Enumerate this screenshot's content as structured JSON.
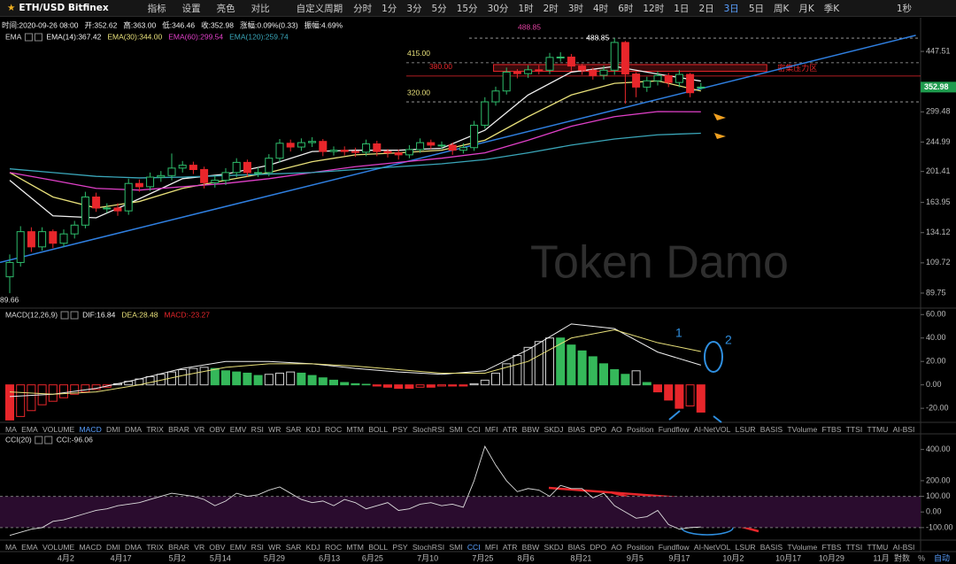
{
  "toolbar": {
    "symbol": "ETH/USD Bitfinex",
    "buttons": [
      "指标",
      "设置",
      "亮色",
      "对比"
    ],
    "custom": "自定义周期",
    "periods": [
      "分时",
      "1分",
      "3分",
      "5分",
      "15分",
      "30分",
      "1时",
      "2时",
      "3时",
      "4时",
      "6时",
      "12时",
      "1日",
      "2日",
      "3日",
      "5日",
      "周K",
      "月K",
      "季K"
    ],
    "active_period": "3日",
    "right": "1秒"
  },
  "info": [
    "时间:2020-09-26 08:00",
    "开:352.62",
    "高:363.00",
    "低:346.46",
    "收:352.98",
    "涨幅:0.09%(0.33)",
    "振幅:4.69%"
  ],
  "watermark": "Token Damo",
  "chart_data": [
    {
      "type": "candlestick",
      "indicator": "EMA",
      "log_scale": true,
      "ylim": [
        81.2,
        512.6
      ],
      "yticks": [
        447.51,
        299.48,
        244.99,
        201.41,
        163.95,
        134.12,
        109.72,
        89.75
      ],
      "last_price": 352.98,
      "up_color": "#2ebd6b",
      "down_color": "#e8262b",
      "categories": [
        null,
        null,
        null,
        null,
        null,
        null,
        null,
        null,
        null,
        null,
        null,
        null,
        null,
        null,
        null,
        null,
        null,
        null,
        null,
        null,
        null,
        null,
        null,
        null,
        null,
        null,
        null,
        null,
        null,
        null,
        null,
        null,
        null,
        null,
        null,
        null,
        null,
        null,
        null,
        null,
        null,
        null,
        null,
        null,
        null,
        null,
        null,
        null,
        null,
        null,
        null,
        null,
        null,
        null,
        null,
        null,
        null,
        null,
        null,
        null,
        null,
        null,
        null,
        null,
        null
      ],
      "ohlc": [
        [
          100,
          116,
          89.66,
          110
        ],
        [
          110,
          140,
          107,
          135
        ],
        [
          135,
          139,
          118,
          122
        ],
        [
          122,
          139,
          119,
          135
        ],
        [
          135,
          137,
          121,
          125
        ],
        [
          125,
          137,
          122,
          133
        ],
        [
          133,
          145,
          129,
          141
        ],
        [
          141,
          176,
          138,
          170
        ],
        [
          170,
          175,
          154,
          158
        ],
        [
          158,
          163,
          153,
          158
        ],
        [
          158,
          163,
          150,
          155
        ],
        [
          155,
          192,
          151,
          186
        ],
        [
          186,
          191,
          176,
          182
        ],
        [
          182,
          200,
          177,
          194
        ],
        [
          194,
          202,
          188,
          196
        ],
        [
          196,
          227,
          190,
          206
        ],
        [
          206,
          216,
          200,
          210
        ],
        [
          210,
          215,
          198,
          204
        ],
        [
          204,
          208,
          180,
          187
        ],
        [
          187,
          196,
          181,
          190
        ],
        [
          190,
          206,
          184,
          200
        ],
        [
          200,
          220,
          194,
          214
        ],
        [
          214,
          218,
          195,
          200
        ],
        [
          200,
          207,
          194,
          200
        ],
        [
          200,
          226,
          195,
          220
        ],
        [
          220,
          250,
          214,
          243
        ],
        [
          243,
          249,
          230,
          237
        ],
        [
          237,
          251,
          231,
          244
        ],
        [
          244,
          253,
          237,
          246
        ],
        [
          246,
          250,
          223,
          230
        ],
        [
          230,
          238,
          224,
          232
        ],
        [
          232,
          238,
          224,
          230
        ],
        [
          230,
          236,
          222,
          229
        ],
        [
          229,
          249,
          223,
          242
        ],
        [
          242,
          247,
          223,
          230
        ],
        [
          230,
          234,
          221,
          228
        ],
        [
          228,
          233,
          218,
          225
        ],
        [
          225,
          240,
          220,
          233
        ],
        [
          233,
          251,
          228,
          244
        ],
        [
          244,
          249,
          234,
          240
        ],
        [
          240,
          246,
          234,
          240
        ],
        [
          240,
          244,
          225,
          232
        ],
        [
          232,
          243,
          227,
          236
        ],
        [
          236,
          282,
          231,
          274
        ],
        [
          274,
          330,
          268,
          320
        ],
        [
          320,
          354,
          312,
          344
        ],
        [
          344,
          402,
          336,
          390
        ],
        [
          390,
          398,
          374,
          386
        ],
        [
          386,
          408,
          375,
          396
        ],
        [
          396,
          408,
          384,
          395
        ],
        [
          395,
          443,
          385,
          430
        ],
        [
          430,
          445,
          418,
          431
        ],
        [
          431,
          440,
          394,
          406
        ],
        [
          406,
          412,
          383,
          395
        ],
        [
          395,
          402,
          371,
          382
        ],
        [
          382,
          407,
          371,
          395
        ],
        [
          395,
          488.85,
          383,
          475
        ],
        [
          475,
          480,
          316,
          385
        ],
        [
          385,
          390,
          330,
          353
        ],
        [
          353,
          378,
          342,
          368
        ],
        [
          368,
          392,
          357,
          381
        ],
        [
          381,
          388,
          353,
          364
        ],
        [
          364,
          395,
          353,
          384
        ],
        [
          384,
          388,
          330,
          340
        ],
        [
          352.62,
          363,
          346.46,
          352.98
        ]
      ],
      "series": [
        {
          "name": "EMA(14):367.42",
          "color": "#f0f0f0",
          "x": [
            0,
            4,
            8,
            12,
            16,
            20,
            24,
            28,
            32,
            36,
            40,
            44,
            48,
            52,
            56,
            60,
            64
          ],
          "values": [
            190,
            150,
            148,
            168,
            192,
            198,
            210,
            230,
            232,
            232,
            235,
            265,
            335,
            390,
            405,
            385,
            367.42
          ]
        },
        {
          "name": "EMA(30):344.00",
          "color": "#e8e07a",
          "x": [
            0,
            4,
            8,
            12,
            16,
            20,
            24,
            28,
            32,
            36,
            40,
            44,
            48,
            52,
            56,
            60,
            64
          ],
          "values": [
            200,
            170,
            158,
            165,
            180,
            190,
            200,
            215,
            225,
            228,
            232,
            248,
            290,
            335,
            362,
            368,
            344
          ]
        },
        {
          "name": "EMA(60):299.54",
          "color": "#e040c8",
          "x": [
            0,
            4,
            8,
            12,
            16,
            20,
            24,
            28,
            32,
            36,
            40,
            44,
            48,
            52,
            56,
            60,
            64
          ],
          "values": [
            200,
            190,
            180,
            178,
            182,
            186,
            192,
            200,
            208,
            214,
            220,
            228,
            248,
            272,
            290,
            300,
            299.54
          ]
        },
        {
          "name": "EMA(120):259.74",
          "color": "#3aa6b9",
          "x": [
            0,
            4,
            8,
            12,
            16,
            20,
            24,
            28,
            32,
            36,
            40,
            44,
            48,
            52,
            56,
            60,
            64
          ],
          "values": [
            205,
            200,
            195,
            193,
            194,
            196,
            198,
            200,
            204,
            208,
            212,
            218,
            228,
            240,
            250,
            257,
            259.74
          ]
        }
      ],
      "levels": [
        {
          "value": 488.85,
          "label": "488.85",
          "color": "#e040a0"
        },
        {
          "value": 415,
          "label": "415.00",
          "color": "#e8e07a"
        },
        {
          "value": 380,
          "label": "380.00",
          "color": "#e8262b"
        },
        {
          "value": 320,
          "label": "320.00",
          "color": "#e8e07a"
        }
      ],
      "zone": {
        "label": "密集压力区",
        "range": [
          392,
          410
        ],
        "x": [
          44.8,
          70.1
        ]
      },
      "trendline": {
        "x": [
          -0.9,
          83.9
        ],
        "values": [
          110,
          498
        ],
        "color": "#2f7fe0"
      }
    },
    {
      "type": "bar",
      "indicator": "MACD(12,26,9)",
      "ylim": [
        -32,
        64
      ],
      "yticks": [
        {
          "value": 60,
          "label": "60.00"
        },
        {
          "value": 40,
          "label": "40.00"
        },
        {
          "value": 20,
          "label": "20.00"
        },
        {
          "value": 0,
          "label": "0.00"
        },
        {
          "value": -20,
          "label": "-20.00"
        }
      ],
      "histogram_name": "MACD:-23.27",
      "values": [
        -30,
        -27,
        -22,
        -17,
        -14,
        -11,
        -8,
        -6,
        -4,
        -2,
        1,
        3,
        5,
        7,
        9,
        11,
        13,
        14,
        15,
        14,
        12,
        11,
        10,
        8,
        9,
        10,
        11,
        10,
        8,
        6,
        4,
        2,
        1,
        0.5,
        -1,
        -2,
        -3,
        -3,
        -2,
        -2,
        -1,
        -1,
        -1,
        1,
        4,
        10,
        18,
        25,
        32,
        37,
        40,
        40,
        34,
        29,
        24,
        18,
        13,
        9,
        12,
        2,
        -6,
        -13,
        -20,
        -18,
        -23.27
      ],
      "series": [
        {
          "name": "DIF:16.84",
          "color": "#f0f0f0",
          "x": [
            0,
            4,
            8,
            12,
            16,
            20,
            24,
            28,
            32,
            36,
            40,
            44,
            48,
            52,
            56,
            60,
            64
          ],
          "values": [
            -10,
            -8,
            -3,
            5,
            14,
            20,
            20,
            18,
            14,
            11,
            9,
            12,
            30,
            52,
            48,
            28,
            16.84
          ]
        },
        {
          "name": "DEA:28.48",
          "color": "#e8e07a",
          "x": [
            0,
            4,
            8,
            12,
            16,
            20,
            24,
            28,
            32,
            36,
            40,
            44,
            48,
            52,
            56,
            60,
            64
          ],
          "values": [
            -6,
            -8,
            -6,
            0,
            8,
            15,
            18,
            18,
            16,
            13,
            10,
            10,
            20,
            40,
            47,
            36,
            28.48
          ]
        }
      ],
      "annotations": [
        "1",
        "2"
      ]
    },
    {
      "type": "line",
      "indicator": "CCI(20)",
      "ylim": [
        -180,
        500
      ],
      "yticks": [
        {
          "value": 400,
          "label": "400.00"
        },
        {
          "value": 200,
          "label": "200.00"
        },
        {
          "value": 100,
          "label": "100.00"
        },
        {
          "value": 0,
          "label": "0.00"
        },
        {
          "value": -100,
          "label": "-100.00"
        }
      ],
      "band": [
        -100,
        100
      ],
      "series": [
        {
          "name": "CCI:-96.06",
          "color": "#dddddd",
          "values": [
            -150,
            -130,
            -110,
            -100,
            -60,
            -50,
            -30,
            -10,
            10,
            20,
            40,
            50,
            60,
            80,
            100,
            120,
            110,
            100,
            80,
            40,
            70,
            120,
            100,
            110,
            140,
            160,
            120,
            80,
            60,
            70,
            40,
            80,
            60,
            20,
            40,
            60,
            10,
            20,
            50,
            60,
            40,
            50,
            30,
            200,
            420,
            300,
            200,
            130,
            150,
            140,
            100,
            170,
            150,
            150,
            90,
            120,
            40,
            0,
            -40,
            -30,
            10,
            -80,
            -110,
            -100,
            -96.06
          ]
        }
      ],
      "xticks": [
        {
          "value": 5.2,
          "label": "4月2"
        },
        {
          "value": 10.3,
          "label": "4月17"
        },
        {
          "value": 15.5,
          "label": "5月2"
        },
        {
          "value": 19.5,
          "label": "5月14"
        },
        {
          "value": 24.5,
          "label": "5月29"
        },
        {
          "value": 29.6,
          "label": "6月13"
        },
        {
          "value": 33.6,
          "label": "6月25"
        },
        {
          "value": 38.7,
          "label": "7月10"
        },
        {
          "value": 43.8,
          "label": "7月25"
        },
        {
          "value": 47.8,
          "label": "8月6"
        },
        {
          "value": 52.9,
          "label": "8月21"
        },
        {
          "value": 57.9,
          "label": "9月5"
        },
        {
          "value": 62,
          "label": "9月17"
        },
        {
          "value": 67,
          "label": "10月2"
        },
        {
          "value": 72.1,
          "label": "10月17"
        },
        {
          "value": 76.1,
          "label": "10月29"
        },
        {
          "value": 80.7,
          "label": "11月"
        }
      ]
    }
  ],
  "tab_rows": [
    {
      "tabs": [
        "MA",
        "EMA",
        "VOLUME",
        "MACD",
        "DMI",
        "DMA",
        "TRIX",
        "BRAR",
        "VR",
        "OBV",
        "EMV",
        "RSI",
        "WR",
        "SAR",
        "KDJ",
        "ROC",
        "MTM",
        "BOLL",
        "PSY",
        "StochRSI",
        "SMI",
        "CCI",
        "MFI",
        "ATR",
        "BBW",
        "SKDJ",
        "BIAS",
        "DPO",
        "AO",
        "Position",
        "Fundflow",
        "AI-NetVOL",
        "LSUR",
        "BASIS",
        "TVolume",
        "FTBS",
        "TTSI",
        "TTMU",
        "AI-BSI"
      ],
      "active": "MACD"
    },
    {
      "tabs": [
        "MA",
        "EMA",
        "VOLUME",
        "MACD",
        "DMI",
        "DMA",
        "TRIX",
        "BRAR",
        "VR",
        "OBV",
        "EMV",
        "RSI",
        "WR",
        "SAR",
        "KDJ",
        "ROC",
        "MTM",
        "BOLL",
        "PSY",
        "StochRSI",
        "SMI",
        "CCI",
        "MFI",
        "ATR",
        "BBW",
        "SKDJ",
        "BIAS",
        "DPO",
        "AO",
        "Position",
        "Fundflow",
        "AI-NetVOL",
        "LSUR",
        "BASIS",
        "TVolume",
        "FTBS",
        "TTSI",
        "TTMU",
        "AI-BSI"
      ],
      "active": "CCI"
    }
  ],
  "bottom_right": [
    "對数",
    "%",
    "自动"
  ]
}
